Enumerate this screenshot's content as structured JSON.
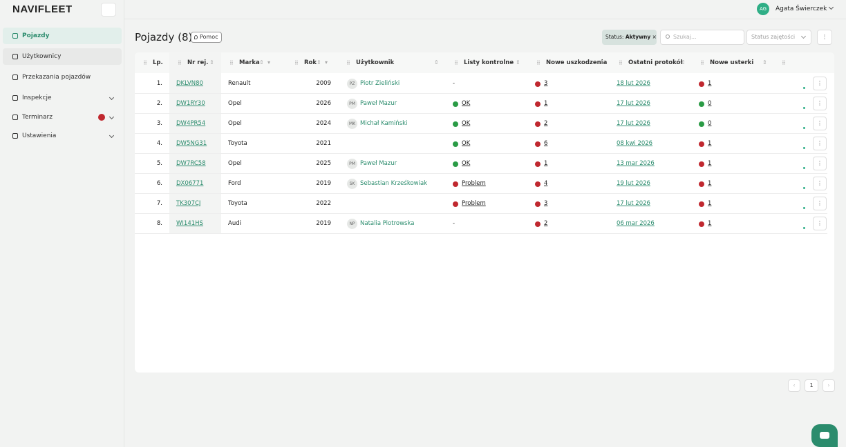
{
  "app": {
    "logo": "NAVIFLEET",
    "user_initials": "AG",
    "user_name": "Agata Świerczek"
  },
  "sidebar": {
    "items": [
      "Pojazdy",
      "Użytkownicy",
      "Przekazania pojazdów",
      "Inspekcje",
      "Terminarz",
      "Ustawienia"
    ],
    "active": 0
  },
  "header": {
    "title": "Pojazdy (8)",
    "help": "Pomoc",
    "filter_label": "Status:",
    "filter_value": "Aktywny",
    "search_placeholder": "Szukaj...",
    "status_select": "Status zajętości"
  },
  "table": {
    "columns": [
      "Lp.",
      "Nr rej.",
      "Marka",
      "Rok",
      "Użytkownik",
      "Listy kontrolne",
      "Nowe uszkodzenia",
      "Ostatni protokół",
      "Nowe usterki"
    ],
    "rows": [
      {
        "lp": "1.",
        "plate": "DKLVN80",
        "make": "Renault",
        "year": 2009,
        "user_initials": "PZ",
        "user": "Piotr Zieliński",
        "checklist": "-",
        "checklist_dot": null,
        "damages": 3,
        "damages_dot": "red",
        "protocol": "18 lut 2026",
        "faults": 1,
        "faults_dot": "red"
      },
      {
        "lp": "2.",
        "plate": "DW1RY30",
        "make": "Opel",
        "year": 2026,
        "user_initials": "PM",
        "user": "Paweł Mazur",
        "checklist": "OK",
        "checklist_dot": "green",
        "damages": 1,
        "damages_dot": "red",
        "protocol": "17 lut 2026",
        "faults": 0,
        "faults_dot": "green"
      },
      {
        "lp": "3.",
        "plate": "DW4PR54",
        "make": "Opel",
        "year": 2024,
        "user_initials": "MK",
        "user": "Michał Kamiński",
        "checklist": "OK",
        "checklist_dot": "green",
        "damages": 2,
        "damages_dot": "red",
        "protocol": "17 lut 2026",
        "faults": 0,
        "faults_dot": "green"
      },
      {
        "lp": "4.",
        "plate": "DW5NG31",
        "make": "Toyota",
        "year": 2021,
        "user_initials": null,
        "user": null,
        "checklist": "OK",
        "checklist_dot": "green",
        "damages": 6,
        "damages_dot": "red",
        "protocol": "08 kwi 2026",
        "faults": 1,
        "faults_dot": "red"
      },
      {
        "lp": "5.",
        "plate": "DW7RC58",
        "make": "Opel",
        "year": 2025,
        "user_initials": "PM",
        "user": "Paweł Mazur",
        "checklist": "OK",
        "checklist_dot": "green",
        "damages": 1,
        "damages_dot": "red",
        "protocol": "13 mar 2026",
        "faults": 1,
        "faults_dot": "red"
      },
      {
        "lp": "6.",
        "plate": "DX06771",
        "make": "Ford",
        "year": 2019,
        "user_initials": "SK",
        "user": "Sebastian Krześkowiak",
        "checklist": "Problem",
        "checklist_dot": "red",
        "damages": 4,
        "damages_dot": "red",
        "protocol": "19 lut 2026",
        "faults": 1,
        "faults_dot": "red"
      },
      {
        "lp": "7.",
        "plate": "TK307CJ",
        "make": "Toyota",
        "year": 2022,
        "user_initials": null,
        "user": null,
        "checklist": "Problem",
        "checklist_dot": "red",
        "damages": 3,
        "damages_dot": "red",
        "protocol": "17 lut 2026",
        "faults": 1,
        "faults_dot": "red"
      },
      {
        "lp": "8.",
        "plate": "WI141HS",
        "make": "Audi",
        "year": 2019,
        "user_initials": "NP",
        "user": "Natalia Piotrowska",
        "checklist": "-",
        "checklist_dot": null,
        "damages": 2,
        "damages_dot": "red",
        "protocol": "06 mar 2026",
        "faults": 1,
        "faults_dot": "red"
      }
    ]
  },
  "pagination": {
    "page": 1
  }
}
